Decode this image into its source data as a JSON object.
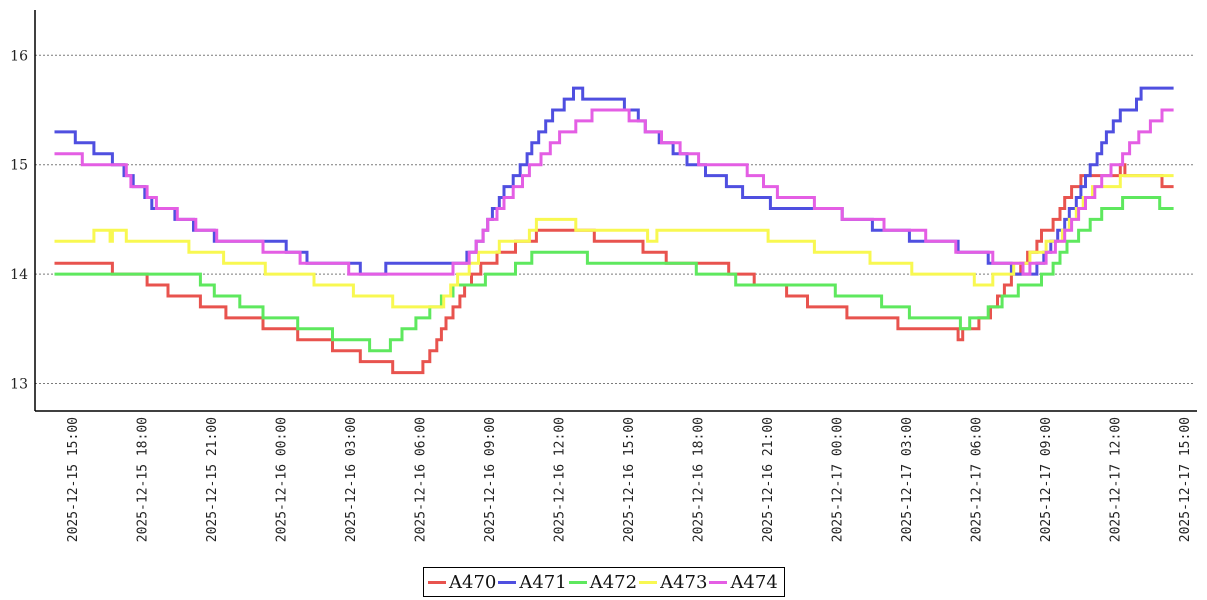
{
  "chart_data": {
    "type": "line",
    "title": "",
    "xlabel": "",
    "ylabel": "",
    "ylim": [
      12.75,
      16.4
    ],
    "y_ticks": [
      "13",
      "14",
      "15",
      "16"
    ],
    "grid": "horizontal-dotted",
    "legend_placement": "bottom-center",
    "x_ticks": [
      "2025-12-15 15:00",
      "2025-12-15 18:00",
      "2025-12-15 21:00",
      "2025-12-16 00:00",
      "2025-12-16 03:00",
      "2025-12-16 06:00",
      "2025-12-16 09:00",
      "2025-12-16 12:00",
      "2025-12-16 15:00",
      "2025-12-16 18:00",
      "2025-12-16 21:00",
      "2025-12-17 00:00",
      "2025-12-17 03:00",
      "2025-12-17 06:00",
      "2025-12-17 09:00",
      "2025-12-17 12:00",
      "2025-12-17 15:00"
    ],
    "x_tick_hours": [
      0,
      3,
      6,
      9,
      12,
      15,
      18,
      21,
      24,
      27,
      30,
      33,
      36,
      39,
      42,
      45,
      48
    ],
    "series": [
      {
        "name": "A470",
        "color": "#e8534e",
        "points": [
          [
            -0.8,
            14.1
          ],
          [
            1.7,
            14.0
          ],
          [
            3.2,
            13.9
          ],
          [
            4.1,
            13.8
          ],
          [
            5.5,
            13.7
          ],
          [
            6.6,
            13.6
          ],
          [
            8.2,
            13.5
          ],
          [
            9.7,
            13.4
          ],
          [
            11.2,
            13.3
          ],
          [
            12.4,
            13.2
          ],
          [
            13.8,
            13.1
          ],
          [
            15.1,
            13.2
          ],
          [
            15.4,
            13.3
          ],
          [
            15.7,
            13.4
          ],
          [
            15.9,
            13.5
          ],
          [
            16.1,
            13.6
          ],
          [
            16.4,
            13.7
          ],
          [
            16.7,
            13.8
          ],
          [
            16.9,
            13.9
          ],
          [
            17.2,
            14.0
          ],
          [
            17.6,
            14.1
          ],
          [
            18.3,
            14.2
          ],
          [
            19.1,
            14.3
          ],
          [
            20.0,
            14.4
          ],
          [
            22.5,
            14.3
          ],
          [
            24.6,
            14.2
          ],
          [
            25.6,
            14.1
          ],
          [
            28.3,
            14.0
          ],
          [
            29.4,
            13.9
          ],
          [
            30.8,
            13.8
          ],
          [
            31.7,
            13.7
          ],
          [
            33.4,
            13.6
          ],
          [
            35.6,
            13.5
          ],
          [
            38.2,
            13.4
          ],
          [
            38.4,
            13.5
          ],
          [
            39.1,
            13.6
          ],
          [
            39.6,
            13.7
          ],
          [
            39.9,
            13.8
          ],
          [
            40.2,
            13.9
          ],
          [
            40.5,
            14.0
          ],
          [
            40.9,
            14.1
          ],
          [
            41.2,
            14.2
          ],
          [
            41.6,
            14.3
          ],
          [
            41.8,
            14.4
          ],
          [
            42.3,
            14.5
          ],
          [
            42.6,
            14.6
          ],
          [
            42.8,
            14.7
          ],
          [
            43.1,
            14.8
          ],
          [
            43.5,
            14.9
          ],
          [
            45.2,
            15.0
          ],
          [
            45.4,
            14.9
          ],
          [
            47.0,
            14.8
          ],
          [
            47.5,
            14.8
          ]
        ]
      },
      {
        "name": "A471",
        "color": "#4f4fe0",
        "points": [
          [
            -0.8,
            15.3
          ],
          [
            0.1,
            15.2
          ],
          [
            0.9,
            15.1
          ],
          [
            1.7,
            15.0
          ],
          [
            2.2,
            14.9
          ],
          [
            2.6,
            14.8
          ],
          [
            3.1,
            14.7
          ],
          [
            3.4,
            14.6
          ],
          [
            4.4,
            14.5
          ],
          [
            5.2,
            14.4
          ],
          [
            6.1,
            14.3
          ],
          [
            9.2,
            14.2
          ],
          [
            10.1,
            14.1
          ],
          [
            12.4,
            14.0
          ],
          [
            13.5,
            14.1
          ],
          [
            17.0,
            14.2
          ],
          [
            17.4,
            14.3
          ],
          [
            17.7,
            14.4
          ],
          [
            17.9,
            14.5
          ],
          [
            18.1,
            14.6
          ],
          [
            18.4,
            14.7
          ],
          [
            18.6,
            14.8
          ],
          [
            19.0,
            14.9
          ],
          [
            19.3,
            15.0
          ],
          [
            19.6,
            15.1
          ],
          [
            19.8,
            15.2
          ],
          [
            20.1,
            15.3
          ],
          [
            20.4,
            15.4
          ],
          [
            20.7,
            15.5
          ],
          [
            21.2,
            15.6
          ],
          [
            21.6,
            15.7
          ],
          [
            22.0,
            15.6
          ],
          [
            23.8,
            15.5
          ],
          [
            24.4,
            15.4
          ],
          [
            24.7,
            15.3
          ],
          [
            25.3,
            15.2
          ],
          [
            25.9,
            15.1
          ],
          [
            26.5,
            15.0
          ],
          [
            27.3,
            14.9
          ],
          [
            28.2,
            14.8
          ],
          [
            28.9,
            14.7
          ],
          [
            30.1,
            14.6
          ],
          [
            33.2,
            14.5
          ],
          [
            34.5,
            14.4
          ],
          [
            36.1,
            14.3
          ],
          [
            38.2,
            14.2
          ],
          [
            39.5,
            14.1
          ],
          [
            40.5,
            14.0
          ],
          [
            41.6,
            14.1
          ],
          [
            41.9,
            14.2
          ],
          [
            42.2,
            14.3
          ],
          [
            42.5,
            14.4
          ],
          [
            42.8,
            14.5
          ],
          [
            43.0,
            14.6
          ],
          [
            43.3,
            14.7
          ],
          [
            43.5,
            14.8
          ],
          [
            43.7,
            14.9
          ],
          [
            43.9,
            15.0
          ],
          [
            44.2,
            15.1
          ],
          [
            44.4,
            15.2
          ],
          [
            44.6,
            15.3
          ],
          [
            44.9,
            15.4
          ],
          [
            45.2,
            15.5
          ],
          [
            45.9,
            15.6
          ],
          [
            46.1,
            15.7
          ],
          [
            47.5,
            15.7
          ]
        ]
      },
      {
        "name": "A472",
        "color": "#5ee85e",
        "points": [
          [
            -0.8,
            14.0
          ],
          [
            5.5,
            13.9
          ],
          [
            6.1,
            13.8
          ],
          [
            7.2,
            13.7
          ],
          [
            8.2,
            13.6
          ],
          [
            9.7,
            13.5
          ],
          [
            11.2,
            13.4
          ],
          [
            12.8,
            13.3
          ],
          [
            13.7,
            13.4
          ],
          [
            14.2,
            13.5
          ],
          [
            14.8,
            13.6
          ],
          [
            15.4,
            13.7
          ],
          [
            15.9,
            13.8
          ],
          [
            16.4,
            13.9
          ],
          [
            17.8,
            14.0
          ],
          [
            19.1,
            14.1
          ],
          [
            19.8,
            14.2
          ],
          [
            22.2,
            14.1
          ],
          [
            26.9,
            14.0
          ],
          [
            28.6,
            13.9
          ],
          [
            32.9,
            13.8
          ],
          [
            34.9,
            13.7
          ],
          [
            36.1,
            13.6
          ],
          [
            38.3,
            13.5
          ],
          [
            38.7,
            13.6
          ],
          [
            39.5,
            13.7
          ],
          [
            40.1,
            13.8
          ],
          [
            40.8,
            13.9
          ],
          [
            41.8,
            14.0
          ],
          [
            42.3,
            14.1
          ],
          [
            42.6,
            14.2
          ],
          [
            42.9,
            14.3
          ],
          [
            43.4,
            14.4
          ],
          [
            43.9,
            14.5
          ],
          [
            44.4,
            14.6
          ],
          [
            45.3,
            14.7
          ],
          [
            46.9,
            14.6
          ],
          [
            47.5,
            14.6
          ]
        ]
      },
      {
        "name": "A473",
        "color": "#f8f851",
        "points": [
          [
            -0.8,
            14.3
          ],
          [
            0.9,
            14.4
          ],
          [
            1.6,
            14.3
          ],
          [
            1.7,
            14.4
          ],
          [
            2.3,
            14.3
          ],
          [
            5.0,
            14.2
          ],
          [
            6.5,
            14.1
          ],
          [
            8.3,
            14.0
          ],
          [
            10.4,
            13.9
          ],
          [
            12.1,
            13.8
          ],
          [
            13.8,
            13.7
          ],
          [
            16.0,
            13.8
          ],
          [
            16.3,
            13.9
          ],
          [
            16.6,
            14.0
          ],
          [
            17.1,
            14.1
          ],
          [
            17.5,
            14.2
          ],
          [
            18.4,
            14.3
          ],
          [
            19.7,
            14.4
          ],
          [
            20.0,
            14.5
          ],
          [
            21.7,
            14.4
          ],
          [
            24.8,
            14.3
          ],
          [
            25.2,
            14.4
          ],
          [
            30.0,
            14.3
          ],
          [
            32.0,
            14.2
          ],
          [
            34.4,
            14.1
          ],
          [
            36.2,
            14.0
          ],
          [
            38.9,
            13.9
          ],
          [
            39.7,
            14.0
          ],
          [
            40.6,
            14.1
          ],
          [
            41.3,
            14.2
          ],
          [
            42.0,
            14.3
          ],
          [
            42.7,
            14.4
          ],
          [
            43.0,
            14.5
          ],
          [
            43.3,
            14.6
          ],
          [
            43.6,
            14.7
          ],
          [
            44.0,
            14.8
          ],
          [
            45.2,
            14.9
          ],
          [
            47.5,
            14.9
          ]
        ]
      },
      {
        "name": "A474",
        "color": "#e45ee4",
        "points": [
          [
            -0.8,
            15.1
          ],
          [
            0.4,
            15.0
          ],
          [
            2.3,
            14.9
          ],
          [
            2.5,
            14.8
          ],
          [
            3.2,
            14.7
          ],
          [
            3.6,
            14.6
          ],
          [
            4.5,
            14.5
          ],
          [
            5.3,
            14.4
          ],
          [
            6.2,
            14.3
          ],
          [
            8.2,
            14.2
          ],
          [
            9.8,
            14.1
          ],
          [
            11.9,
            14.0
          ],
          [
            16.4,
            14.1
          ],
          [
            17.1,
            14.2
          ],
          [
            17.4,
            14.3
          ],
          [
            17.7,
            14.4
          ],
          [
            17.9,
            14.5
          ],
          [
            18.3,
            14.6
          ],
          [
            18.6,
            14.7
          ],
          [
            19.0,
            14.8
          ],
          [
            19.4,
            14.9
          ],
          [
            19.7,
            15.0
          ],
          [
            20.2,
            15.1
          ],
          [
            20.6,
            15.2
          ],
          [
            21.0,
            15.3
          ],
          [
            21.7,
            15.4
          ],
          [
            22.4,
            15.5
          ],
          [
            24.0,
            15.4
          ],
          [
            24.7,
            15.3
          ],
          [
            25.4,
            15.2
          ],
          [
            26.2,
            15.1
          ],
          [
            27.0,
            15.0
          ],
          [
            29.1,
            14.9
          ],
          [
            29.8,
            14.8
          ],
          [
            30.4,
            14.7
          ],
          [
            32.0,
            14.6
          ],
          [
            33.2,
            14.5
          ],
          [
            35.0,
            14.4
          ],
          [
            36.8,
            14.3
          ],
          [
            38.1,
            14.2
          ],
          [
            39.7,
            14.1
          ],
          [
            41.0,
            14.0
          ],
          [
            41.3,
            14.1
          ],
          [
            42.0,
            14.2
          ],
          [
            42.4,
            14.3
          ],
          [
            42.8,
            14.4
          ],
          [
            43.1,
            14.5
          ],
          [
            43.4,
            14.6
          ],
          [
            43.7,
            14.7
          ],
          [
            44.1,
            14.8
          ],
          [
            44.4,
            14.9
          ],
          [
            44.8,
            15.0
          ],
          [
            45.3,
            15.1
          ],
          [
            45.6,
            15.2
          ],
          [
            46.0,
            15.3
          ],
          [
            46.5,
            15.4
          ],
          [
            47.0,
            15.5
          ],
          [
            47.5,
            15.5
          ]
        ]
      }
    ]
  }
}
